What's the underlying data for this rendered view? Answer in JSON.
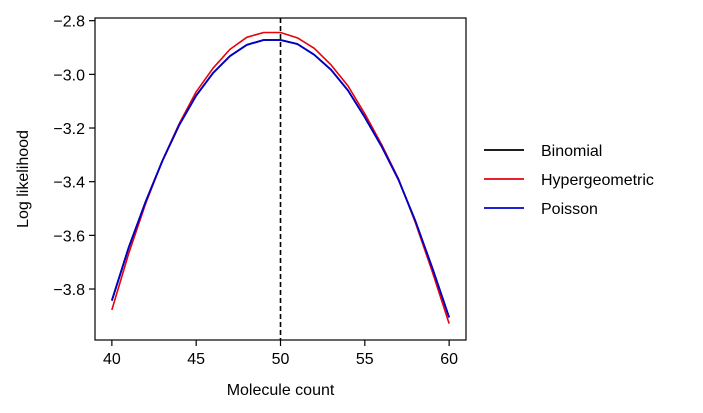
{
  "chart_data": {
    "type": "line",
    "title": "",
    "xlabel": "Molecule count",
    "ylabel": "Log likelihood",
    "xlim": [
      39,
      61
    ],
    "ylim": [
      -3.99,
      -2.79
    ],
    "x": [
      40,
      41,
      42,
      43,
      44,
      45,
      46,
      47,
      48,
      49,
      50,
      51,
      52,
      53,
      54,
      55,
      56,
      57,
      58,
      59,
      60
    ],
    "xticks": [
      40,
      45,
      50,
      55,
      60
    ],
    "xtick_labels": [
      "40",
      "45",
      "50",
      "55",
      "60"
    ],
    "yticks": [
      -2.8,
      -3.0,
      -3.2,
      -3.4,
      -3.6,
      -3.8
    ],
    "ytick_labels": [
      "−2.8",
      "−3.0",
      "−3.2",
      "−3.4",
      "−3.6",
      "−3.8"
    ],
    "grid": false,
    "legend_position": "right",
    "vline": {
      "x": 50,
      "style": "dashed",
      "color": "#000000"
    },
    "series": [
      {
        "name": "Binomial",
        "color": "#000000",
        "values": [
          -3.843,
          -3.645,
          -3.475,
          -3.322,
          -3.188,
          -3.079,
          -2.995,
          -2.932,
          -2.89,
          -2.872,
          -2.872,
          -2.887,
          -2.927,
          -2.983,
          -3.06,
          -3.16,
          -3.269,
          -3.393,
          -3.547,
          -3.721,
          -3.906
        ]
      },
      {
        "name": "Hypergeometric",
        "color": "#e8000b",
        "values": [
          -3.878,
          -3.667,
          -3.482,
          -3.321,
          -3.183,
          -3.065,
          -2.977,
          -2.907,
          -2.862,
          -2.844,
          -2.844,
          -2.864,
          -2.903,
          -2.965,
          -3.043,
          -3.147,
          -3.262,
          -3.39,
          -3.553,
          -3.735,
          -3.929
        ]
      },
      {
        "name": "Poisson",
        "color": "#0000cd",
        "values": [
          -3.843,
          -3.645,
          -3.475,
          -3.322,
          -3.188,
          -3.079,
          -2.995,
          -2.932,
          -2.89,
          -2.872,
          -2.872,
          -2.887,
          -2.927,
          -2.983,
          -3.06,
          -3.16,
          -3.269,
          -3.393,
          -3.547,
          -3.721,
          -3.906
        ]
      }
    ]
  }
}
